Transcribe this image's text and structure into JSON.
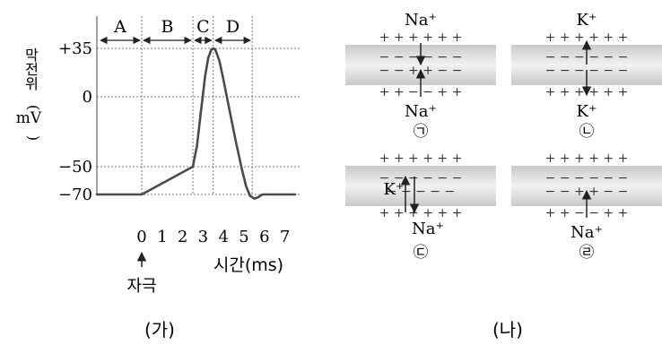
{
  "chart_data": {
    "type": "line",
    "panel_label": "(가)",
    "ylabel_text": "막전위",
    "ylabel_paren_open": "(",
    "ylabel_unit": "mV",
    "ylabel_paren_close": ")",
    "xlabel": "시간(ms)",
    "stimulus_label": "자극",
    "y_ticks": [
      {
        "value": 35,
        "label": "+35"
      },
      {
        "value": 0,
        "label": "0"
      },
      {
        "value": -50,
        "label": "−50"
      },
      {
        "value": -70,
        "label": "−70"
      }
    ],
    "x_ticks": [
      {
        "value": 0,
        "label": "0"
      },
      {
        "value": 1,
        "label": "1"
      },
      {
        "value": 2,
        "label": "2"
      },
      {
        "value": 3,
        "label": "3"
      },
      {
        "value": 4,
        "label": "4"
      },
      {
        "value": 5,
        "label": "5"
      },
      {
        "value": 6,
        "label": "6"
      },
      {
        "value": 7,
        "label": "7"
      }
    ],
    "xlim": [
      -2,
      7.5
    ],
    "ylim": [
      -82,
      42
    ],
    "segments": [
      {
        "label": "A",
        "start": -2,
        "end": 0
      },
      {
        "label": "B",
        "start": 0,
        "end": 2.5
      },
      {
        "label": "C",
        "start": 2.5,
        "end": 3.5
      },
      {
        "label": "D",
        "start": 3.5,
        "end": 5.4
      }
    ],
    "guide_lines": {
      "x": [
        0,
        2.5,
        3.5,
        5.4
      ],
      "y": [
        35,
        0,
        -50,
        -70
      ]
    },
    "series": [
      {
        "x": [
          -2,
          0,
          2.5,
          2.7,
          2.9,
          3.1,
          3.25,
          3.4,
          3.5,
          3.6,
          3.8,
          4.0,
          4.3,
          4.6,
          4.9,
          5.1,
          5.3,
          5.5,
          5.7,
          5.9,
          6.2,
          7.5
        ],
        "y": [
          -70,
          -70,
          -50,
          -35,
          -10,
          15,
          28,
          34,
          35,
          34,
          26,
          12,
          -10,
          -32,
          -52,
          -64,
          -71,
          -73,
          -72,
          -70,
          -70,
          -70
        ]
      }
    ]
  },
  "membrane_diagram": {
    "panel_label": "(나)",
    "panels": [
      {
        "mark": "㉠",
        "ion_top": "Na⁺",
        "ion_bottom": "Na⁺",
        "outer_top": "+ + +    + + +",
        "outer_bottom": "+ + −    − + +",
        "inner_1": "− − −    − − −",
        "inner_2": "− − +    + − −",
        "top_arrow": "down",
        "bottom_arrow": "up"
      },
      {
        "mark": "㉡",
        "ion_top": "K⁺",
        "ion_bottom": "K⁺",
        "outer_top": "+ + +    + + +",
        "outer_bottom": "+ + +    + + +",
        "inner_1": "− − −    − − −",
        "inner_2": "− − −    − − −",
        "top_arrow": "up",
        "bottom_arrow": "down"
      },
      {
        "mark": "㉢",
        "ion_top": "K⁺",
        "ion_bottom": "Na⁺",
        "outer_top": "+ + +    + + +",
        "outer_bottom": "+ + +    + + +",
        "inner_1": "− − −    − − −",
        "inner_2": "− −      − − −",
        "top_arrow": "up",
        "bottom_arrow": "down"
      },
      {
        "mark": "㉣",
        "ion_top": "",
        "ion_bottom": "Na⁺",
        "outer_top": "+ + +    + + +",
        "outer_bottom": "+ + −    − + +",
        "inner_1": "− − −    − − −",
        "inner_2": "− − +    + − −",
        "top_arrow": "",
        "bottom_arrow": "up"
      }
    ]
  }
}
